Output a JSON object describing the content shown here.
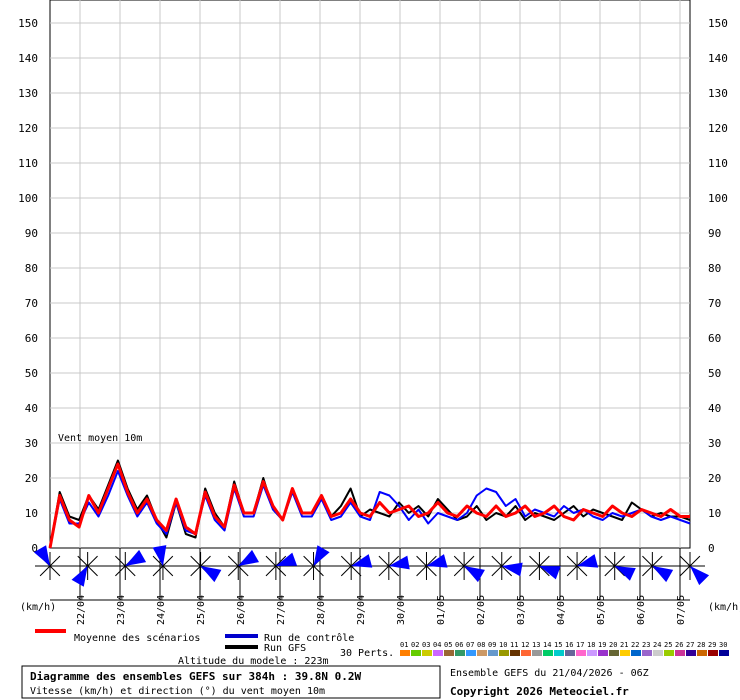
{
  "chart_data": {
    "type": "line",
    "title": "Diagramme des ensembles GEFS sur 384h : 39.8N 0.2W",
    "subtitle": "Vitesse (km/h) et direction (°) du vent moyen 10m",
    "altitude": "Altitude du modele : 223m",
    "run_info": "Ensemble GEFS du 21/04/2026 - 06Z",
    "copyright": "Copyright 2026 Meteociel.fr",
    "inner_label": "Vent moyen 10m",
    "ylabel_left": "(km/h)",
    "ylabel_right": "(km/h)",
    "ylim": [
      0,
      150
    ],
    "yticks": [
      0,
      10,
      20,
      30,
      40,
      50,
      60,
      70,
      80,
      90,
      100,
      110,
      120,
      130,
      140,
      150
    ],
    "date_labels": [
      "22/04",
      "23/04",
      "24/04",
      "25/04",
      "26/04",
      "27/04",
      "28/04",
      "29/04",
      "30/04",
      "01/05",
      "02/05",
      "03/05",
      "04/05",
      "05/05",
      "06/05",
      "07/05"
    ],
    "legend": {
      "mean": "Moyenne des scénarios",
      "control": "Run de contrôle",
      "gfs": "Run GFS",
      "perts": "30 Perts."
    },
    "pert_labels": [
      "01",
      "02",
      "03",
      "04",
      "05",
      "06",
      "07",
      "08",
      "09",
      "10",
      "11",
      "12",
      "13",
      "14",
      "15",
      "16",
      "17",
      "18",
      "19",
      "20",
      "21",
      "22",
      "23",
      "24",
      "25",
      "26",
      "27",
      "28",
      "29",
      "30"
    ],
    "pert_colors": [
      "#ff7f00",
      "#66cc00",
      "#cccc00",
      "#cc66ff",
      "#996633",
      "#339966",
      "#3399ff",
      "#cc9966",
      "#6699cc",
      "#999900",
      "#663300",
      "#ff6633",
      "#999999",
      "#00cc66",
      "#00cccc",
      "#666699",
      "#ff66cc",
      "#cc99ff",
      "#9933cc",
      "#666633",
      "#ffcc00",
      "#0066cc",
      "#9966cc",
      "#cccccc",
      "#99cc00",
      "#cc3399",
      "#330099",
      "#cc6600",
      "#990000",
      "#000099"
    ],
    "series": [
      {
        "name": "Moyenne des scénarios",
        "color": "#ff0000",
        "values": [
          0,
          15,
          8,
          6,
          15,
          10,
          17,
          24,
          16,
          10,
          14,
          8,
          5,
          14,
          6,
          4,
          16,
          9,
          6,
          18,
          10,
          10,
          19,
          12,
          8,
          17,
          10,
          10,
          15,
          9,
          10,
          14,
          10,
          9,
          13,
          10,
          11,
          12,
          9,
          10,
          13,
          10,
          9,
          12,
          10,
          9,
          12,
          9,
          10,
          12,
          9,
          10,
          12,
          9,
          8,
          11,
          10,
          9,
          12,
          10,
          9,
          11,
          10,
          9,
          11,
          9,
          9
        ]
      },
      {
        "name": "Run de contrôle",
        "color": "#0000ff",
        "values": [
          0,
          14,
          7,
          7,
          13,
          9,
          15,
          22,
          15,
          9,
          13,
          7,
          4,
          13,
          5,
          4,
          15,
          8,
          5,
          17,
          9,
          9,
          18,
          11,
          8,
          16,
          9,
          9,
          14,
          8,
          9,
          13,
          9,
          8,
          16,
          15,
          12,
          8,
          11,
          7,
          10,
          9,
          8,
          10,
          15,
          17,
          16,
          12,
          14,
          9,
          11,
          10,
          9,
          12,
          10,
          11,
          9,
          8,
          10,
          9,
          10,
          11,
          9,
          8,
          9,
          8,
          7
        ]
      },
      {
        "name": "Run GFS",
        "color": "#000000",
        "values": [
          0,
          16,
          9,
          8,
          15,
          11,
          18,
          25,
          17,
          11,
          15,
          8,
          3,
          13,
          4,
          3,
          17,
          10,
          6,
          19,
          10,
          10,
          20,
          11,
          8,
          17,
          10,
          10,
          15,
          9,
          12,
          17,
          9,
          11,
          10,
          9,
          13,
          10,
          12,
          9,
          14,
          11,
          8,
          9,
          12,
          8,
          10,
          9,
          12,
          8,
          10,
          9,
          8,
          10,
          12,
          9,
          11,
          10,
          9,
          8,
          13,
          11,
          9,
          10,
          9,
          9,
          8
        ]
      }
    ],
    "wind_directions_deg": [
      330,
      210,
      60,
      350,
      120,
      60,
      70,
      30,
      75,
      80,
      75,
      120,
      100,
      110,
      75,
      115,
      120,
      135
    ]
  }
}
